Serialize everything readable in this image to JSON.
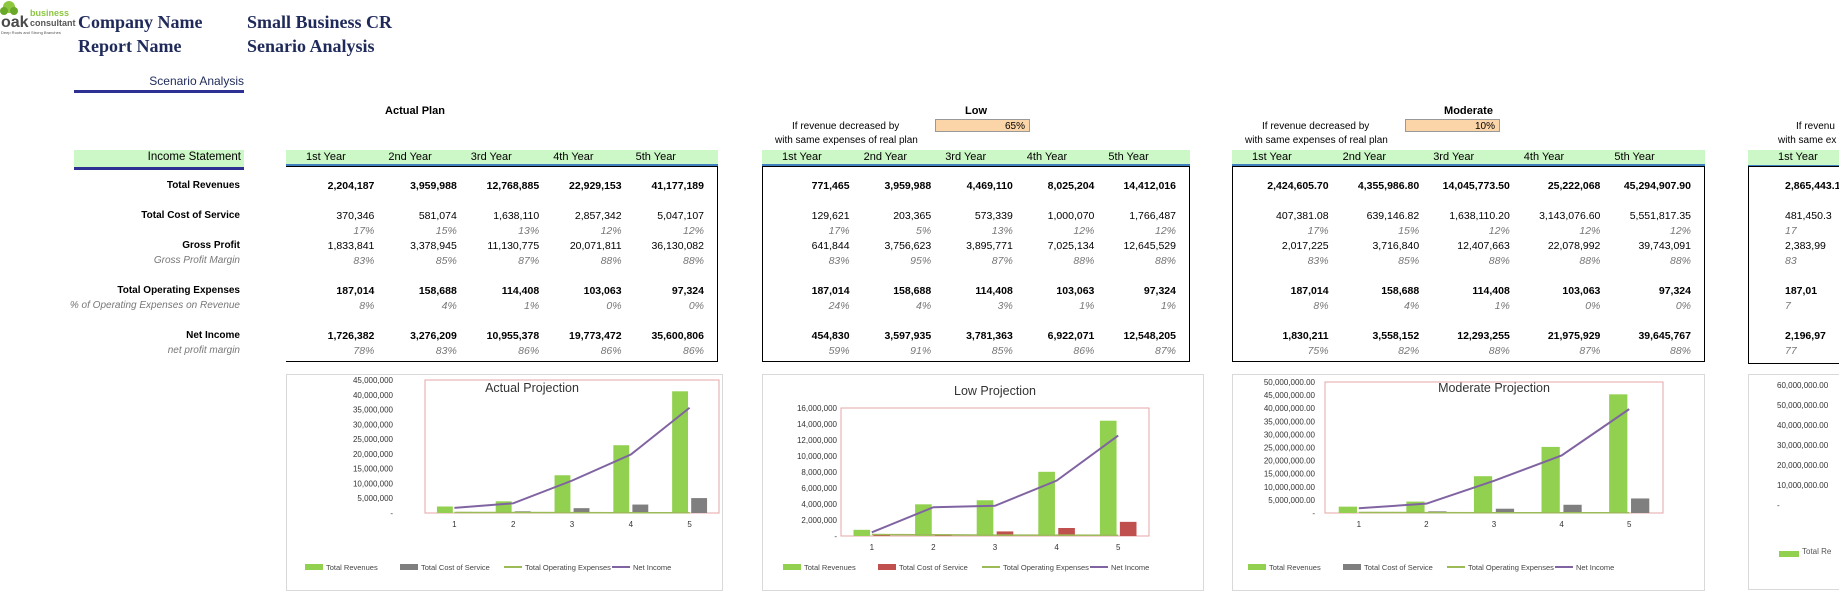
{
  "logo": {
    "line1": "business",
    "line2": "consultant",
    "tagline": "Deep Roots and Strong Branches",
    "mark": "oak"
  },
  "header": {
    "company_label": "Company Name",
    "company_value": "Small Business CR",
    "report_label": "Report Name",
    "report_value": "Senario Analysis",
    "tab": "Scenario Analysis"
  },
  "income_statement_label": "Income Statement",
  "years": [
    "1st Year",
    "2nd Year",
    "3rd Year",
    "4th Year",
    "5th Year"
  ],
  "row_labels": [
    "Total Revenues",
    "Total Cost of Service",
    "",
    "Gross Profit",
    "Gross Profit Margin",
    "Total Operating Expenses",
    "% of Operating Expenses on Revenue",
    "Net Income",
    "net profit margin"
  ],
  "legend": [
    "Total Revenues",
    "Total Cost of Service",
    "Total Operating Expenses",
    "Net Income"
  ],
  "colors": {
    "revenue": "#92d050",
    "cost": "#7f7f7f",
    "cost_low": "#c0504d",
    "opex": "#9bbb59",
    "net": "#8064a2",
    "header_band": "#ccf7c6",
    "input": "#fbd4a8"
  },
  "scenarios": [
    {
      "title": "Actual Plan",
      "note1": "",
      "note2": "",
      "pct": "",
      "rows": [
        [
          "2,204,187",
          "3,959,988",
          "12,768,885",
          "22,929,153",
          "41,177,189"
        ],
        [
          "370,346",
          "581,074",
          "1,638,110",
          "2,857,342",
          "5,047,107"
        ],
        [
          "17%",
          "15%",
          "13%",
          "12%",
          "12%"
        ],
        [
          "1,833,841",
          "3,378,945",
          "11,130,775",
          "20,071,811",
          "36,130,082"
        ],
        [
          "83%",
          "85%",
          "87%",
          "88%",
          "88%"
        ],
        [
          "187,014",
          "158,688",
          "114,408",
          "103,063",
          "97,324"
        ],
        [
          "8%",
          "4%",
          "1%",
          "0%",
          "0%"
        ],
        [
          "1,726,382",
          "3,276,209",
          "10,955,378",
          "19,773,472",
          "35,600,806"
        ],
        [
          "78%",
          "83%",
          "86%",
          "86%",
          "86%"
        ]
      ],
      "chart": {
        "title": "Actual Projection",
        "yticks": [
          "45,000,000",
          "40,000,000",
          "35,000,000",
          "30,000,000",
          "25,000,000",
          "20,000,000",
          "15,000,000",
          "10,000,000",
          "5,000,000",
          "-"
        ],
        "xticks": [
          "1",
          "2",
          "3",
          "4",
          "5"
        ],
        "ylim": [
          0,
          45000000
        ],
        "revenue": [
          2204187,
          3959988,
          12768885,
          22929153,
          41177189
        ],
        "cost": [
          370346,
          581074,
          1638110,
          2857342,
          5047107
        ],
        "opex": [
          187014,
          158688,
          114408,
          103063,
          97324
        ],
        "net": [
          1726382,
          3276209,
          10955378,
          19773472,
          35600806
        ]
      }
    },
    {
      "title": "Low",
      "note1": "If revenue decreased by",
      "note2": "with same expenses of real plan",
      "pct": "65%",
      "rows": [
        [
          "771,465",
          "3,959,988",
          "4,469,110",
          "8,025,204",
          "14,412,016"
        ],
        [
          "129,621",
          "203,365",
          "573,339",
          "1,000,070",
          "1,766,487"
        ],
        [
          "17%",
          "5%",
          "13%",
          "12%",
          "12%"
        ],
        [
          "641,844",
          "3,756,623",
          "3,895,771",
          "7,025,134",
          "12,645,529"
        ],
        [
          "83%",
          "95%",
          "87%",
          "88%",
          "88%"
        ],
        [
          "187,014",
          "158,688",
          "114,408",
          "103,063",
          "97,324"
        ],
        [
          "24%",
          "4%",
          "3%",
          "1%",
          "1%"
        ],
        [
          "454,830",
          "3,597,935",
          "3,781,363",
          "6,922,071",
          "12,548,205"
        ],
        [
          "59%",
          "91%",
          "85%",
          "86%",
          "87%"
        ]
      ],
      "chart": {
        "title": "Low Projection",
        "yticks": [
          "16,000,000",
          "14,000,000",
          "12,000,000",
          "10,000,000",
          "8,000,000",
          "6,000,000",
          "4,000,000",
          "2,000,000",
          "-"
        ],
        "xticks": [
          "1",
          "2",
          "3",
          "4",
          "5"
        ],
        "ylim": [
          0,
          16000000
        ],
        "revenue": [
          771465,
          3959988,
          4469110,
          8025204,
          14412016
        ],
        "cost": [
          129621,
          203365,
          573339,
          1000070,
          1766487
        ],
        "opex": [
          187014,
          158688,
          114408,
          103063,
          97324
        ],
        "net": [
          454830,
          3597935,
          3781363,
          6922071,
          12548205
        ]
      }
    },
    {
      "title": "Moderate",
      "note1": "If revenue decreased by",
      "note2": "with same expenses of real plan",
      "pct": "10%",
      "rows": [
        [
          "2,424,605.70",
          "4,355,986.80",
          "14,045,773.50",
          "25,222,068",
          "45,294,907.90"
        ],
        [
          "407,381.08",
          "639,146.82",
          "1,638,110.20",
          "3,143,076.60",
          "5,551,817.35"
        ],
        [
          "17%",
          "15%",
          "12%",
          "12%",
          "12%"
        ],
        [
          "2,017,225",
          "3,716,840",
          "12,407,663",
          "22,078,992",
          "39,743,091"
        ],
        [
          "83%",
          "85%",
          "88%",
          "88%",
          "88%"
        ],
        [
          "187,014",
          "158,688",
          "114,408",
          "103,063",
          "97,324"
        ],
        [
          "8%",
          "4%",
          "1%",
          "0%",
          "0%"
        ],
        [
          "1,830,211",
          "3,558,152",
          "12,293,255",
          "21,975,929",
          "39,645,767"
        ],
        [
          "75%",
          "82%",
          "88%",
          "87%",
          "88%"
        ]
      ],
      "chart": {
        "title": "Moderate Projection",
        "yticks": [
          "50,000,000.00",
          "45,000,000.00",
          "40,000,000.00",
          "35,000,000.00",
          "30,000,000.00",
          "25,000,000.00",
          "20,000,000.00",
          "15,000,000.00",
          "10,000,000.00",
          "5,000,000.00",
          "-"
        ],
        "xticks": [
          "1",
          "2",
          "3",
          "4",
          "5"
        ],
        "ylim": [
          0,
          50000000
        ],
        "revenue": [
          2424605.7,
          4355986.8,
          14045773.5,
          25222068,
          45294907.9
        ],
        "cost": [
          407381.08,
          639146.82,
          1638110.2,
          3143076.6,
          5551817.35
        ],
        "opex": [
          187014,
          158688,
          114408,
          103063,
          97324
        ],
        "net": [
          1830211,
          3558152,
          12293255,
          21975929,
          39645767
        ]
      }
    }
  ],
  "partial": {
    "note1": "If revenu",
    "note2": "with same ex",
    "year": "1st Year",
    "rows": [
      "2,865,443.1",
      "481,450.3",
      "17",
      "2,383,99",
      "83",
      "187,01",
      "7",
      "2,196,97",
      "77"
    ],
    "chart_yticks": [
      "60,000,000.00",
      "50,000,000.00",
      "40,000,000.00",
      "30,000,000.00",
      "20,000,000.00",
      "10,000,000.00",
      "-"
    ],
    "legend": "Total Re"
  },
  "chart_data": [
    {
      "type": "bar",
      "title": "Actual Projection",
      "categories": [
        "1",
        "2",
        "3",
        "4",
        "5"
      ],
      "ylim": [
        0,
        45000000
      ],
      "series": [
        {
          "name": "Total Revenues",
          "values": [
            2204187,
            3959988,
            12768885,
            22929153,
            41177189
          ]
        },
        {
          "name": "Total Cost of Service",
          "values": [
            370346,
            581074,
            1638110,
            2857342,
            5047107
          ]
        },
        {
          "name": "Total Operating Expenses",
          "values": [
            187014,
            158688,
            114408,
            103063,
            97324
          ]
        },
        {
          "name": "Net Income",
          "values": [
            1726382,
            3276209,
            10955378,
            19773472,
            35600806
          ]
        }
      ]
    },
    {
      "type": "bar",
      "title": "Low Projection",
      "categories": [
        "1",
        "2",
        "3",
        "4",
        "5"
      ],
      "ylim": [
        0,
        16000000
      ],
      "series": [
        {
          "name": "Total Revenues",
          "values": [
            771465,
            3959988,
            4469110,
            8025204,
            14412016
          ]
        },
        {
          "name": "Total Cost of Service",
          "values": [
            129621,
            203365,
            573339,
            1000070,
            1766487
          ]
        },
        {
          "name": "Total Operating Expenses",
          "values": [
            187014,
            158688,
            114408,
            103063,
            97324
          ]
        },
        {
          "name": "Net Income",
          "values": [
            454830,
            3597935,
            3781363,
            6922071,
            12548205
          ]
        }
      ]
    },
    {
      "type": "bar",
      "title": "Moderate Projection",
      "categories": [
        "1",
        "2",
        "3",
        "4",
        "5"
      ],
      "ylim": [
        0,
        50000000
      ],
      "series": [
        {
          "name": "Total Revenues",
          "values": [
            2424605.7,
            4355986.8,
            14045773.5,
            25222068,
            45294907.9
          ]
        },
        {
          "name": "Total Cost of Service",
          "values": [
            407381.08,
            639146.82,
            1638110.2,
            3143076.6,
            5551817.35
          ]
        },
        {
          "name": "Total Operating Expenses",
          "values": [
            187014,
            158688,
            114408,
            103063,
            97324
          ]
        },
        {
          "name": "Net Income",
          "values": [
            1830211,
            3558152,
            12293255,
            21975929,
            39645767
          ]
        }
      ]
    }
  ]
}
